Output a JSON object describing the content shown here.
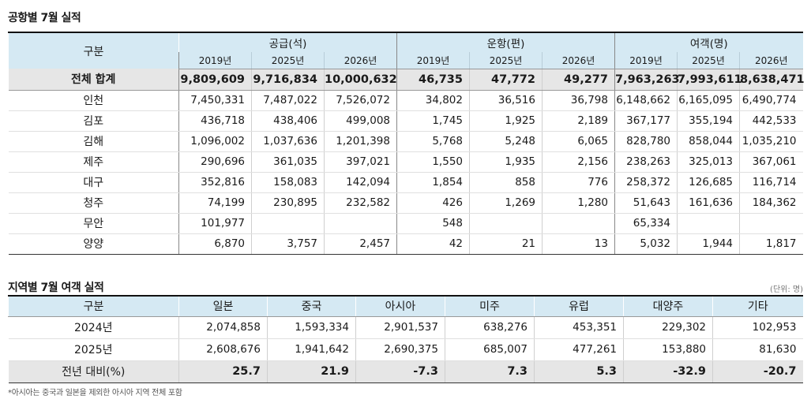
{
  "airport_table": {
    "title": "공항별 7월 실적",
    "gubun_label": "구분",
    "groups": [
      {
        "label": "공급(석)",
        "years": [
          "2019년",
          "2025년",
          "2026년"
        ]
      },
      {
        "label": "운항(편)",
        "years": [
          "2019년",
          "2025년",
          "2026년"
        ]
      },
      {
        "label": "여객(명)",
        "years": [
          "2019년",
          "2025년",
          "2026년"
        ]
      }
    ],
    "rows": [
      {
        "name": "전체 합계",
        "values": [
          "9,809,609",
          "9,716,834",
          "10,000,632",
          "46,735",
          "47,772",
          "49,277",
          "7,963,263",
          "7,993,611",
          "8,638,471"
        ]
      },
      {
        "name": "인천",
        "values": [
          "7,450,331",
          "7,487,022",
          "7,526,072",
          "34,802",
          "36,516",
          "36,798",
          "6,148,662",
          "6,165,095",
          "6,490,774"
        ]
      },
      {
        "name": "김포",
        "values": [
          "436,718",
          "438,406",
          "499,008",
          "1,745",
          "1,925",
          "2,189",
          "367,177",
          "355,194",
          "442,533"
        ]
      },
      {
        "name": "김해",
        "values": [
          "1,096,002",
          "1,037,636",
          "1,201,398",
          "5,768",
          "5,248",
          "6,065",
          "828,780",
          "858,044",
          "1,035,210"
        ]
      },
      {
        "name": "제주",
        "values": [
          "290,696",
          "361,035",
          "397,021",
          "1,550",
          "1,935",
          "2,156",
          "238,263",
          "325,013",
          "367,061"
        ]
      },
      {
        "name": "대구",
        "values": [
          "352,816",
          "158,083",
          "142,094",
          "1,854",
          "858",
          "776",
          "258,372",
          "126,685",
          "116,714"
        ]
      },
      {
        "name": "청주",
        "values": [
          "74,199",
          "230,895",
          "232,582",
          "426",
          "1,269",
          "1,280",
          "51,643",
          "161,636",
          "184,362"
        ]
      },
      {
        "name": "무안",
        "values": [
          "101,977",
          "",
          "",
          "548",
          "",
          "",
          "65,334",
          "",
          ""
        ]
      },
      {
        "name": "양양",
        "values": [
          "6,870",
          "3,757",
          "2,457",
          "42",
          "21",
          "13",
          "5,032",
          "1,944",
          "1,817"
        ]
      }
    ]
  },
  "region_table": {
    "title": "지역별 7월 여객 실적",
    "unit": "(단위: 명)",
    "gubun_label": "구분",
    "columns": [
      "일본",
      "중국",
      "아시아",
      "미주",
      "유럽",
      "대양주",
      "기타"
    ],
    "rows": [
      {
        "name": "2024년",
        "values": [
          "2,074,858",
          "1,593,334",
          "2,901,537",
          "638,276",
          "453,351",
          "229,302",
          "102,953"
        ]
      },
      {
        "name": "2025년",
        "values": [
          "2,608,676",
          "1,941,642",
          "2,690,375",
          "685,007",
          "477,261",
          "153,880",
          "81,630"
        ]
      },
      {
        "name": "전년 대비(%)",
        "values": [
          "25.7",
          "21.9",
          "-7.3",
          "7.3",
          "5.3",
          "-32.9",
          "-20.7"
        ]
      }
    ],
    "footnote": "*아시아는 중국과 일본을 제외한 아시아 지역 전체 포함"
  },
  "colors": {
    "header_bg": "#d5e9f3",
    "total_row_bg": "#e6e6e6"
  }
}
